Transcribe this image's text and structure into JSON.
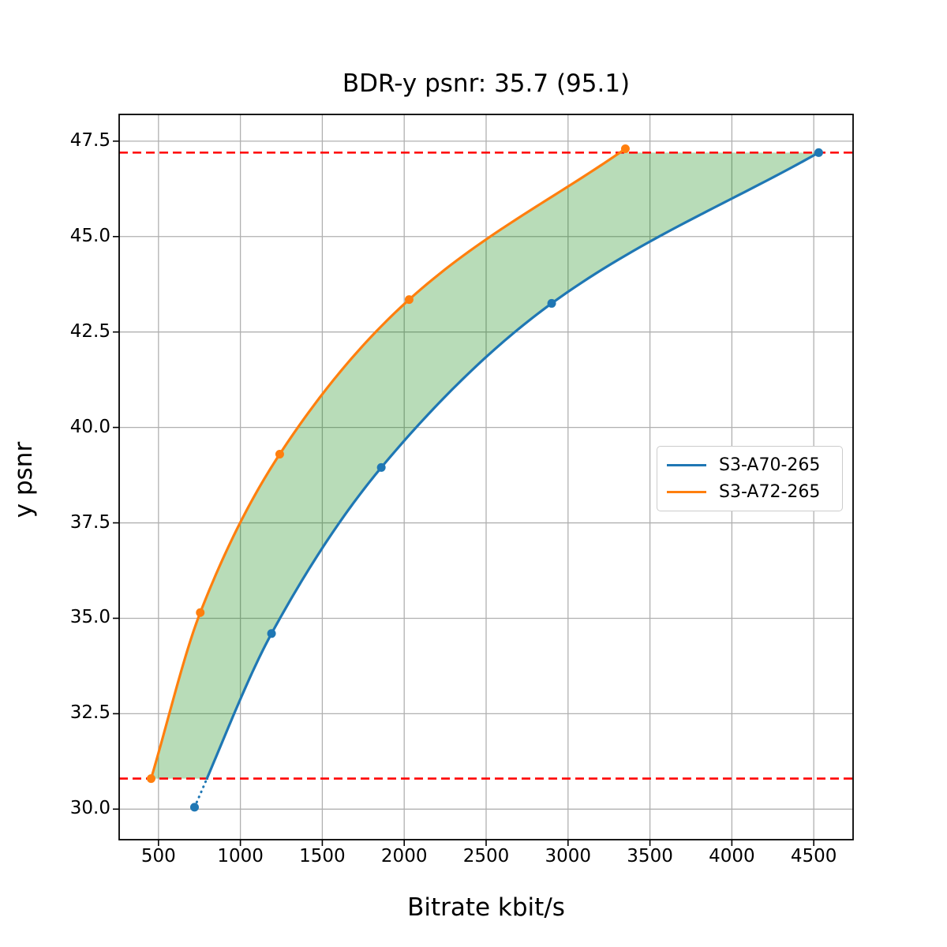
{
  "figure": {
    "title": "BDR-y psnr: 35.7 (95.1)",
    "xlabel": "Bitrate kbit/s",
    "ylabel": "y psnr"
  },
  "chart_data": {
    "type": "line",
    "title": "BDR-y psnr: 35.7 (95.1)",
    "xlabel": "Bitrate kbit/s",
    "ylabel": "y psnr",
    "xlim": [
      260,
      4740
    ],
    "ylim": [
      29.2,
      48.2
    ],
    "xticks": [
      500,
      1000,
      1500,
      2000,
      2500,
      3000,
      3500,
      4000,
      4500
    ],
    "xtick_labels": [
      "500",
      "1000",
      "1500",
      "2000",
      "2500",
      "3000",
      "3500",
      "4000",
      "4500"
    ],
    "yticks": [
      30.0,
      32.5,
      35.0,
      37.5,
      40.0,
      42.5,
      45.0,
      47.5
    ],
    "ytick_labels": [
      "30.0",
      "32.5",
      "35.0",
      "37.5",
      "40.0",
      "42.5",
      "45.0",
      "47.5"
    ],
    "grid": true,
    "grid_color": "#b0b0b0",
    "background_color": "#ffffff",
    "series": [
      {
        "name": "S3-A70-265",
        "color": "#1f77b4",
        "x": [
          720,
          1190,
          1860,
          2900,
          4530
        ],
        "y": [
          30.05,
          34.6,
          38.95,
          43.25,
          47.2
        ],
        "style": "solid",
        "dotted_below_y": 30.8,
        "markers": true
      },
      {
        "name": "S3-A72-265",
        "color": "#ff7f0e",
        "x": [
          455,
          755,
          1240,
          2030,
          3350
        ],
        "y": [
          30.8,
          35.15,
          39.3,
          43.35,
          47.3
        ],
        "style": "solid",
        "markers": true
      }
    ],
    "reference_lines": {
      "color": "#ff0000",
      "style": "dashed",
      "upper_y": 47.2,
      "lower_y": 30.8
    },
    "shaded_region": {
      "description": "BD area between the two rate-distortion curves over the overlapping psnr range",
      "between_series": [
        "S3-A72-265",
        "S3-A70-265"
      ],
      "y_range": [
        30.8,
        47.2
      ],
      "color": "#008000",
      "opacity": 0.28
    },
    "legend": {
      "entries": [
        "S3-A70-265",
        "S3-A72-265"
      ],
      "position": "center right"
    }
  }
}
